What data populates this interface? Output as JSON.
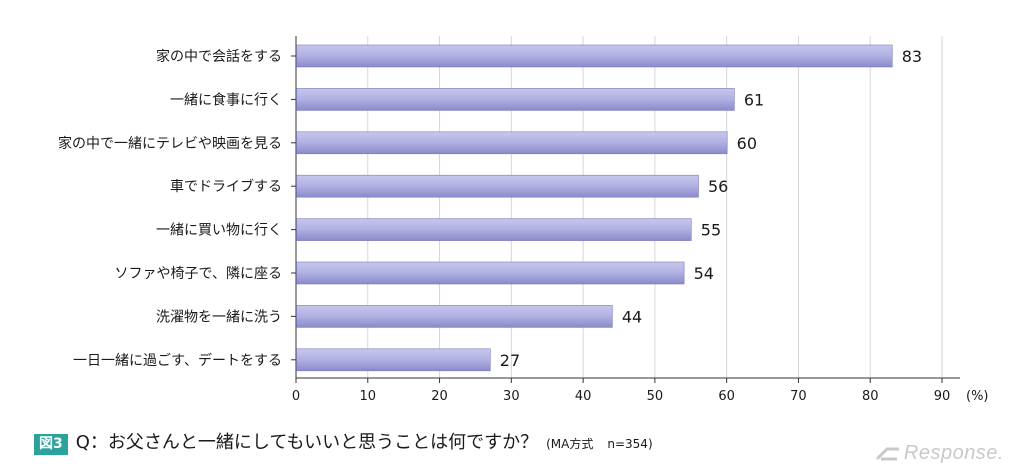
{
  "chart_data": {
    "type": "bar",
    "orientation": "horizontal",
    "categories": [
      "家の中で会話をする",
      "一緒に食事に行く",
      "家の中で一緒にテレビや映画を見る",
      "車でドライブする",
      "一緒に買い物に行く",
      "ソファや椅子で、隣に座る",
      "洗濯物を一緒に洗う",
      "一日一緒に過ごす、デートをする"
    ],
    "values": [
      83,
      61,
      60,
      56,
      55,
      54,
      44,
      27
    ],
    "xlim": [
      0,
      90
    ],
    "xticks": [
      "0",
      "10",
      "20",
      "30",
      "40",
      "50",
      "60",
      "70",
      "80",
      "90"
    ],
    "xunit": "(%)",
    "grid": true,
    "bar_color": "#a9a9dd"
  },
  "caption": {
    "figure_label": "図3",
    "question": "Q：お父さんと一緒にしてもいいと思うことは何ですか？",
    "method": "(MA方式",
    "sample": "n=354)"
  },
  "watermark": {
    "text": "Response."
  }
}
